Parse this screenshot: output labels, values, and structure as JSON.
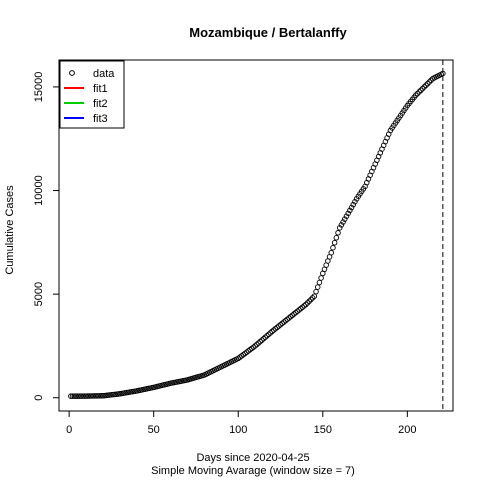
{
  "chart_data": {
    "type": "scatter",
    "title": "Mozambique / Bertalanffy",
    "xlabel": "Days since 2020-04-25",
    "subtitle": "Simple Moving Avarage (window size = 7)",
    "ylabel": "Cumulative Cases",
    "xlim": [
      -6,
      227
    ],
    "ylim": [
      -640,
      16300
    ],
    "x_ticks": [
      0,
      50,
      100,
      150,
      200
    ],
    "y_ticks": [
      0,
      5000,
      10000,
      15000
    ],
    "vline_x": 221,
    "legend_position": "top-left",
    "legend": [
      {
        "label": "data",
        "kind": "point",
        "color": "#000000"
      },
      {
        "label": "fit1",
        "kind": "line",
        "color": "#ff0000"
      },
      {
        "label": "fit2",
        "kind": "line",
        "color": "#00cd00"
      },
      {
        "label": "fit3",
        "kind": "line",
        "color": "#0000ff"
      }
    ],
    "series": [
      {
        "name": "data",
        "knots": [
          [
            1,
            75
          ],
          [
            10,
            80
          ],
          [
            20,
            95
          ],
          [
            30,
            190
          ],
          [
            40,
            330
          ],
          [
            50,
            500
          ],
          [
            60,
            700
          ],
          [
            70,
            860
          ],
          [
            80,
            1100
          ],
          [
            90,
            1500
          ],
          [
            100,
            1900
          ],
          [
            110,
            2500
          ],
          [
            120,
            3200
          ],
          [
            130,
            3850
          ],
          [
            140,
            4500
          ],
          [
            145,
            4900
          ],
          [
            150,
            6000
          ],
          [
            155,
            7000
          ],
          [
            160,
            8200
          ],
          [
            165,
            8900
          ],
          [
            170,
            9600
          ],
          [
            175,
            10200
          ],
          [
            180,
            11100
          ],
          [
            185,
            12000
          ],
          [
            190,
            12900
          ],
          [
            195,
            13500
          ],
          [
            200,
            14100
          ],
          [
            205,
            14600
          ],
          [
            210,
            15000
          ],
          [
            215,
            15400
          ],
          [
            221,
            15650
          ]
        ]
      }
    ]
  }
}
